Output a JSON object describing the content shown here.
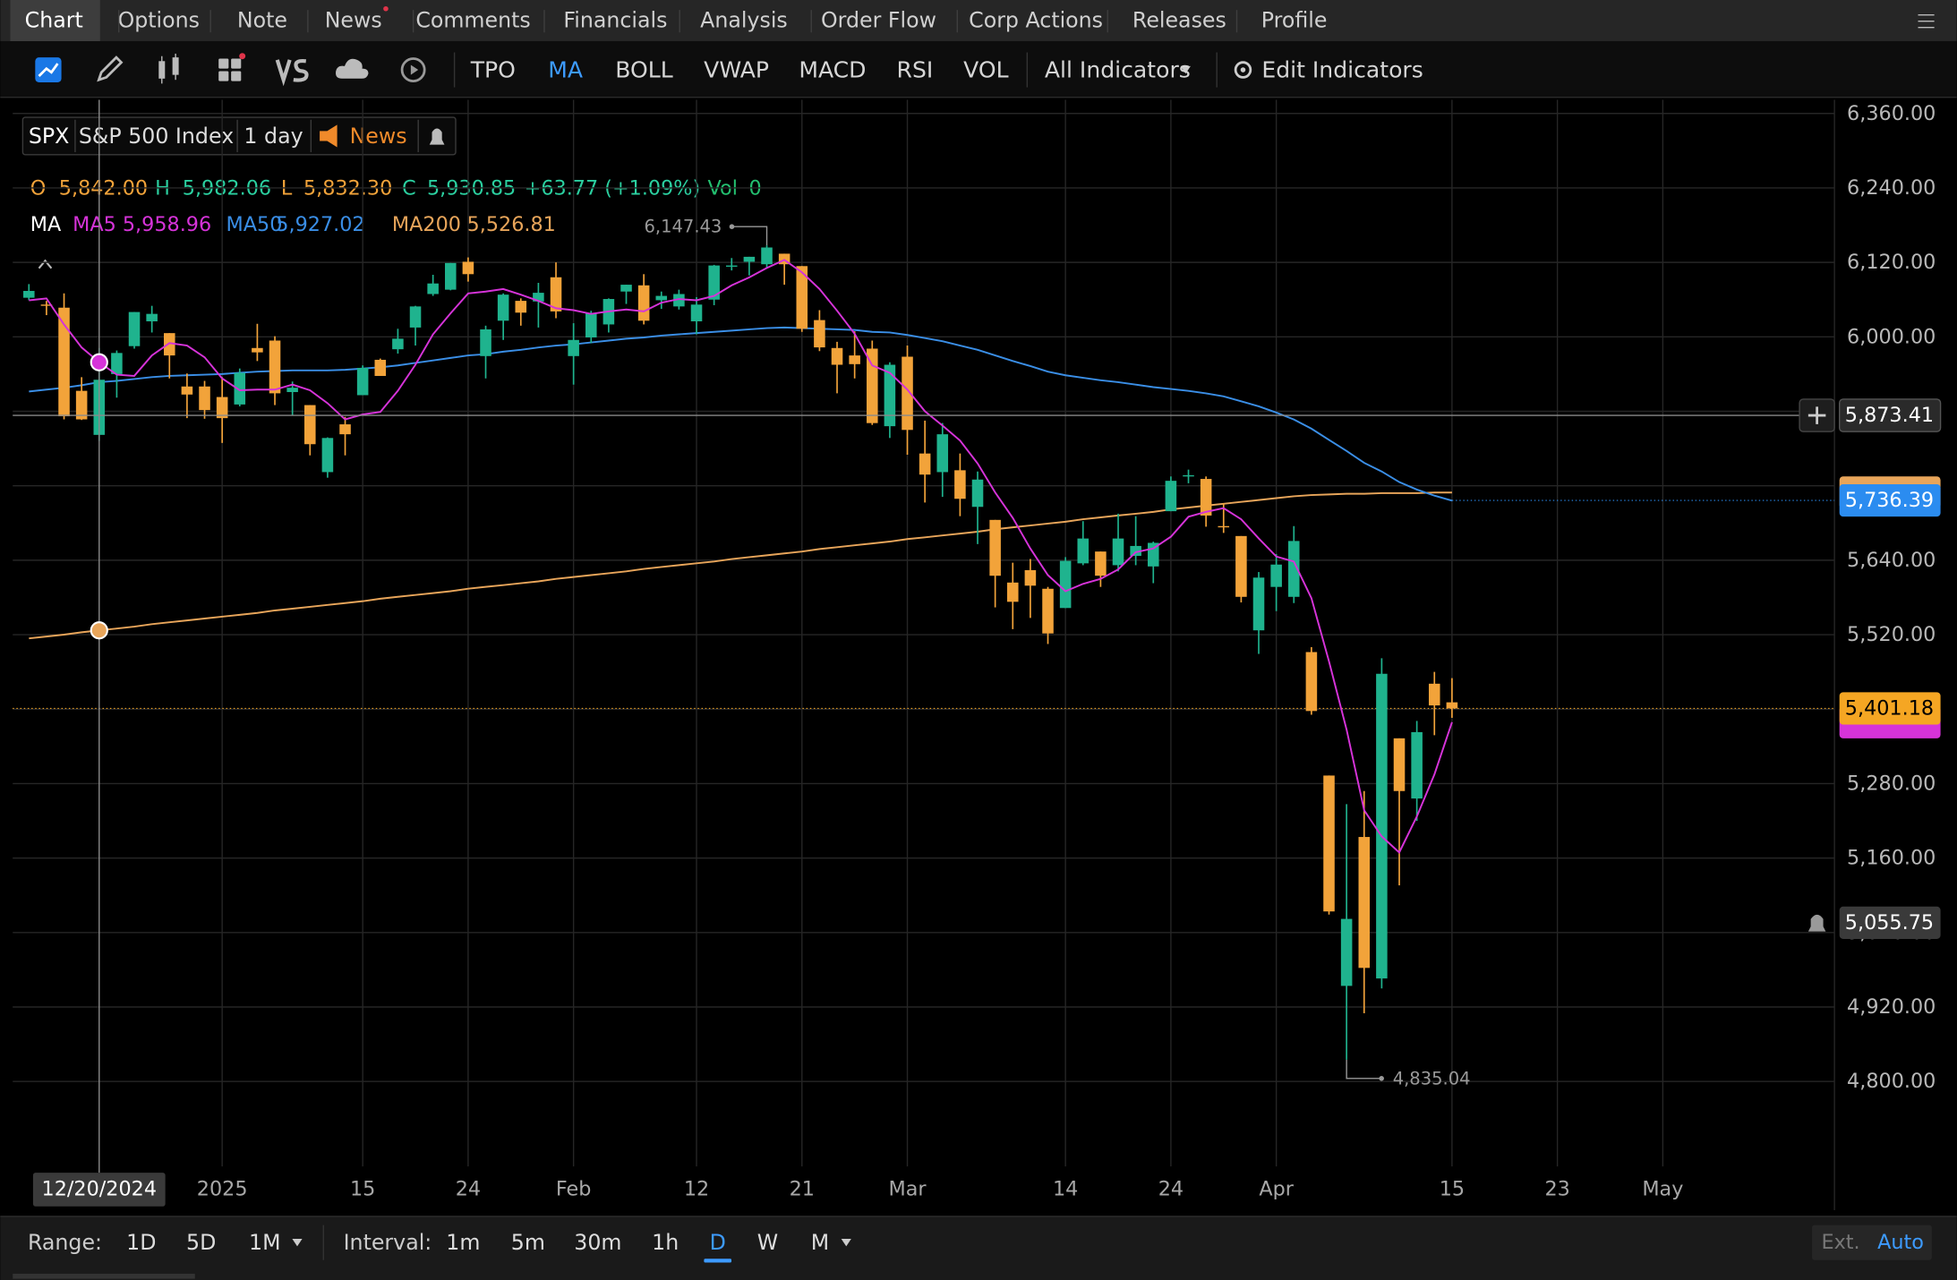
{
  "tabs": [
    "Chart",
    "Options",
    "Note",
    "News",
    "Comments",
    "Financials",
    "Analysis",
    "Order Flow",
    "Corp Actions",
    "Releases",
    "Profile"
  ],
  "toolbar": {
    "indicators": [
      "TPO",
      "MA",
      "BOLL",
      "VWAP",
      "MACD",
      "RSI",
      "VOL"
    ],
    "active": "MA",
    "all_indicators": "All Indicators",
    "edit_indicators": "Edit Indicators"
  },
  "legend": {
    "symbol": "SPX",
    "name": "S&P 500 Index",
    "period": "1 day",
    "news": "News"
  },
  "quote": {
    "o_label": "O",
    "open": "5,842.00",
    "h_label": "H",
    "high": "5,982.06",
    "l_label": "L",
    "low": "5,832.30",
    "c_label": "C",
    "close": "5,930.85",
    "change": "+63.77 (+1.09%)",
    "vol_label": "Vol",
    "volume": "0"
  },
  "ma_label": "MA",
  "chart_data": {
    "type": "candlestick",
    "up_color": "#1fb38e",
    "down_color": "#f2a33a",
    "open": [
      6063,
      6052,
      6047,
      5913,
      5842,
      5940,
      5985,
      6025,
      6006,
      5920,
      5920,
      5903,
      5891,
      5982,
      5994,
      5911,
      5890,
      5782,
      5859,
      5906,
      5963,
      5980,
      6015,
      6069,
      6076,
      6121,
      5969,
      6026,
      6058,
      6057,
      6096,
      5969,
      5999,
      6020,
      6073,
      6083,
      6059,
      6049,
      6025,
      6060,
      6115,
      6121,
      6117,
      6134,
      6114,
      6027,
      5982,
      5970,
      5981,
      5856,
      5968,
      5812,
      5782,
      5785,
      5726,
      5705,
      5604,
      5624,
      5594,
      5563,
      5635,
      5654,
      5632,
      5647,
      5630,
      5719,
      5776,
      5771,
      5695,
      5679,
      5527,
      5597,
      5581,
      5492,
      5293,
      4954,
      5194,
      4966,
      5353,
      5256,
      5441,
      5411
    ],
    "high": [
      6085,
      6058,
      6070,
      5935,
      5982.06,
      5978,
      6040,
      6050,
      6006,
      5941,
      5929,
      5935,
      5949,
      6021,
      6001,
      5928,
      5890,
      5838,
      5871,
      5954,
      5965,
      6013,
      6050,
      6100,
      6119,
      6128,
      6018,
      6070,
      6062,
      6087,
      6120,
      6022,
      6042,
      6062,
      6084,
      6101,
      6073,
      6076,
      6064,
      6116,
      6127,
      6129,
      6147.43,
      6134,
      6114,
      6043,
      5992,
      6009,
      5994,
      5959,
      5986,
      5865,
      5861,
      5812,
      5783,
      5705,
      5636,
      5642,
      5597,
      5645,
      5703,
      5654,
      5715,
      5711,
      5670,
      5775,
      5786,
      5775,
      5732,
      5679,
      5621,
      5650,
      5695,
      5500,
      5293,
      5247,
      5268,
      5482,
      5353,
      5381,
      5460,
      5450
    ],
    "low": [
      6059,
      6035,
      5867,
      5866,
      5832.3,
      5902,
      5981,
      6007,
      5933,
      5869,
      5868,
      5829,
      5888,
      5961,
      5890,
      5874,
      5809,
      5773,
      5809,
      5906,
      5937,
      5973,
      5986,
      6066,
      6075,
      6089,
      5933,
      5995,
      6018,
      6015,
      6030,
      5923,
      5990,
      6007,
      6053,
      6020,
      6045,
      6044,
      6004,
      6051,
      6107,
      6099,
      6111,
      6084,
      6008,
      5977,
      5909,
      5933,
      5858,
      5837,
      5810,
      5733,
      5742,
      5711,
      5666,
      5564,
      5529,
      5547,
      5505,
      5563,
      5632,
      5597,
      5622,
      5632,
      5603,
      5719,
      5764,
      5694,
      5684,
      5572,
      5489,
      5558,
      5571,
      5391,
      5069,
      4835.04,
      4910,
      4950,
      5116,
      5220,
      5358,
      5386
    ],
    "close": [
      6074,
      6050,
      5872,
      5867,
      5930.85,
      5974,
      6040,
      6037,
      5970,
      5907,
      5882,
      5869,
      5942,
      5975,
      5909,
      5918,
      5827,
      5837,
      5843,
      5950,
      5937,
      5997,
      6049,
      6086,
      6119,
      6101,
      6012,
      6068,
      6039,
      6071,
      6041,
      5995,
      6038,
      6061,
      6084,
      6026,
      6066,
      6069,
      6052,
      6115,
      6115,
      6129,
      6144,
      6117,
      6013,
      5983,
      5955,
      5956,
      5861,
      5955,
      5850,
      5778,
      5843,
      5739,
      5770,
      5615,
      5573,
      5599,
      5522,
      5639,
      5675,
      5615,
      5675,
      5663,
      5668,
      5768,
      5777,
      5712,
      5693,
      5581,
      5612,
      5633,
      5671,
      5397,
      5074,
      5062,
      4983,
      5457,
      5268,
      5363,
      5406,
      5401.18
    ],
    "series": [
      {
        "name": "MA200",
        "color": "#e8a55a",
        "current": "5,526.81",
        "values": [
          5514,
          5517,
          5520,
          5524,
          5527,
          5530,
          5533,
          5537,
          5540,
          5543,
          5546,
          5549,
          5552,
          5555,
          5559,
          5562,
          5565,
          5568,
          5571,
          5574,
          5578,
          5581,
          5584,
          5587,
          5590,
          5594,
          5597,
          5600,
          5603,
          5606,
          5610,
          5613,
          5616,
          5619,
          5622,
          5626,
          5629,
          5632,
          5635,
          5638,
          5642,
          5645,
          5648,
          5651,
          5654,
          5658,
          5661,
          5664,
          5667,
          5670,
          5674,
          5677,
          5680,
          5683,
          5686,
          5690,
          5693,
          5696,
          5699,
          5702,
          5706,
          5709,
          5712,
          5715,
          5718,
          5722,
          5725,
          5728,
          5731,
          5734,
          5737,
          5740,
          5743,
          5745,
          5746,
          5747,
          5747,
          5748,
          5748,
          5748,
          5749,
          5749
        ]
      },
      {
        "name": "MA50",
        "color": "#3a8ee6",
        "current": "5,927.02",
        "values": [
          5912,
          5915,
          5918,
          5922,
          5927,
          5929,
          5932,
          5935,
          5937,
          5938,
          5939,
          5940,
          5942,
          5944,
          5945,
          5946,
          5946,
          5946,
          5947,
          5949,
          5951,
          5954,
          5958,
          5962,
          5966,
          5970,
          5972,
          5976,
          5979,
          5983,
          5986,
          5988,
          5991,
          5994,
          5997,
          5999,
          6002,
          6004,
          6006,
          6008,
          6010,
          6012,
          6014,
          6015,
          6014,
          6013,
          6012,
          6011,
          6008,
          6007,
          6003,
          5998,
          5993,
          5986,
          5979,
          5970,
          5961,
          5953,
          5944,
          5938,
          5934,
          5930,
          5927,
          5923,
          5919,
          5916,
          5913,
          5909,
          5904,
          5896,
          5888,
          5878,
          5867,
          5852,
          5834,
          5816,
          5797,
          5783,
          5766,
          5754,
          5744,
          5736
        ]
      },
      {
        "name": "MA5",
        "color": "#d633d9",
        "current": "5,958.96",
        "values": [
          6059,
          6062,
          6020,
          5983,
          5959,
          5939,
          5937,
          5970,
          5990,
          5986,
          5967,
          5933,
          5914,
          5915,
          5915,
          5923,
          5914,
          5893,
          5867,
          5875,
          5879,
          5913,
          5955,
          6004,
          6038,
          6070,
          6073,
          6077,
          6068,
          6058,
          6046,
          6043,
          6037,
          6041,
          6044,
          6041,
          6055,
          6061,
          6059,
          6066,
          6083,
          6096,
          6111,
          6124,
          6104,
          6077,
          6042,
          6005,
          5954,
          5942,
          5915,
          5880,
          5857,
          5833,
          5796,
          5749,
          5708,
          5659,
          5616,
          5590,
          5602,
          5610,
          5625,
          5653,
          5659,
          5678,
          5710,
          5718,
          5724,
          5706,
          5675,
          5646,
          5638,
          5579,
          5477,
          5367,
          5237,
          5195,
          5169,
          5227,
          5295,
          5379
        ]
      }
    ],
    "xlim": [
      -0.92,
      102.77
    ],
    "ylim": [
      4663,
      6382
    ],
    "xticks": [
      {
        "value": 11,
        "label": "2025"
      },
      {
        "value": 19,
        "label": "15"
      },
      {
        "value": 25,
        "label": "24"
      },
      {
        "value": 31,
        "label": "Feb"
      },
      {
        "value": 38,
        "label": "12"
      },
      {
        "value": 44,
        "label": "21"
      },
      {
        "value": 50,
        "label": "Mar"
      },
      {
        "value": 59,
        "label": "14"
      },
      {
        "value": 65,
        "label": "24"
      },
      {
        "value": 71,
        "label": "Apr"
      },
      {
        "value": 81,
        "label": "15"
      },
      {
        "value": 87,
        "label": "23"
      },
      {
        "value": 93,
        "label": "May"
      }
    ],
    "yticks": [
      {
        "value": 6360,
        "label": "6,360.00"
      },
      {
        "value": 6240,
        "label": "6,240.00"
      },
      {
        "value": 6120,
        "label": "6,120.00"
      },
      {
        "value": 6000,
        "label": "6,000.00"
      },
      {
        "value": 5880,
        "label": "5,880.00"
      },
      {
        "value": 5760,
        "label": "5,760.00"
      },
      {
        "value": 5640,
        "label": "5,640.00"
      },
      {
        "value": 5520,
        "label": "5,520.00"
      },
      {
        "value": 5400,
        "label": "5,400.00"
      },
      {
        "value": 5280,
        "label": "5,280.00"
      },
      {
        "value": 5160,
        "label": "5,160.00"
      },
      {
        "value": 5040,
        "label": "5,040.00"
      },
      {
        "value": 4920,
        "label": "4,920.00"
      },
      {
        "value": 4800,
        "label": "4,800.00"
      }
    ],
    "grid": true,
    "crosshair": {
      "index": 4,
      "date": "12/20/2024",
      "price": {
        "value": 5873.41,
        "label": "5,873.41"
      }
    },
    "price_labels": [
      {
        "value": 5736.39,
        "label": "5,736.39",
        "color": "#2b8cf0"
      },
      {
        "value": 5401.18,
        "label": "5,401.18",
        "color": "#f5a623"
      },
      {
        "value": 5055.75,
        "label": "5,055.75",
        "color": "#3a3a3a"
      }
    ],
    "extremes": [
      {
        "index": 42,
        "value": 6147.43,
        "label": "6,147.43",
        "side": "high"
      },
      {
        "index": 75,
        "value": 4835.04,
        "label": "4,835.04",
        "side": "low"
      }
    ]
  },
  "footer": {
    "range_label": "Range:",
    "ranges": [
      "1D",
      "5D",
      "1M"
    ],
    "interval_label": "Interval:",
    "intervals": [
      "1m",
      "5m",
      "30m",
      "1h",
      "D",
      "W",
      "M"
    ],
    "active_interval": "D",
    "ext": "Ext.",
    "auto": "Auto"
  }
}
